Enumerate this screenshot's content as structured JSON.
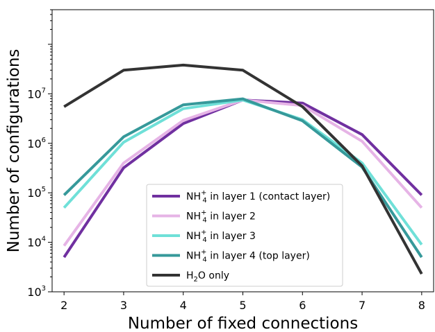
{
  "chart_data": {
    "type": "line",
    "xlabel": "Number of fixed connections",
    "ylabel": "Number of configurations",
    "x": [
      2,
      3,
      4,
      5,
      6,
      7,
      8
    ],
    "xlim": [
      1.8,
      8.2
    ],
    "ylim": [
      1000,
      500000000
    ],
    "yscale": "log",
    "y_ticks": [
      1000,
      10000,
      100000,
      1000000,
      10000000
    ],
    "y_tick_labels": [
      {
        "base": "10",
        "exp": "3"
      },
      {
        "base": "10",
        "exp": "4"
      },
      {
        "base": "10",
        "exp": "5"
      },
      {
        "base": "10",
        "exp": "6"
      },
      {
        "base": "10",
        "exp": "7"
      }
    ],
    "x_tick_labels": [
      "2",
      "3",
      "4",
      "5",
      "6",
      "7",
      "8"
    ],
    "grid": false,
    "legend_position": "lower-center",
    "series": [
      {
        "color": "#7030a0",
        "legend": {
          "pre": "NH",
          "sub": "4",
          "sup": "+",
          "post": " in layer 1 (contact layer)"
        },
        "values": [
          5000,
          320000,
          2500000,
          7500000,
          6500000,
          1500000,
          90000
        ]
      },
      {
        "color": "#e6b4e6",
        "legend": {
          "pre": "NH",
          "sub": "4",
          "sup": "+",
          "post": " in layer 2"
        },
        "values": [
          8500,
          400000,
          2900000,
          7500000,
          5800000,
          1100000,
          50000
        ]
      },
      {
        "color": "#6fe0d8",
        "legend": {
          "pre": "NH",
          "sub": "4",
          "sup": "+",
          "post": " in layer 3"
        },
        "values": [
          50000,
          1050000,
          5000000,
          7500000,
          3000000,
          400000,
          9000
        ]
      },
      {
        "color": "#36999a",
        "legend": {
          "pre": "NH",
          "sub": "4",
          "sup": "+",
          "post": " in layer 4 (top layer)"
        },
        "values": [
          90000,
          1350000,
          6000000,
          7900000,
          2850000,
          330000,
          5000
        ]
      },
      {
        "color": "#333333",
        "legend": {
          "pre": "H",
          "sub": "2",
          "sup": "",
          "post": "O only"
        },
        "values": [
          5500000,
          30000000,
          38000000,
          30000000,
          5500000,
          350000,
          2300
        ]
      }
    ]
  }
}
